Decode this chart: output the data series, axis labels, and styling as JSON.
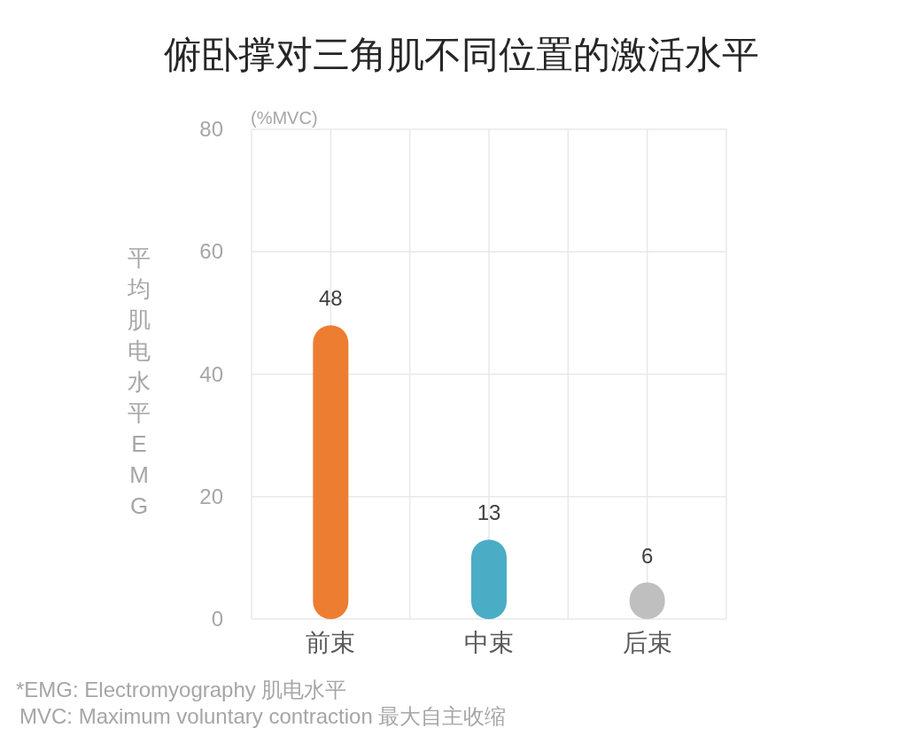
{
  "chart_data": {
    "type": "bar",
    "title": "俯卧撑对三角肌不同位置的激活水平",
    "ylabel": "平均肌电水平EMG",
    "categories": [
      "前束",
      "中束",
      "后束"
    ],
    "values": [
      48,
      13,
      6
    ],
    "colors": [
      "#ed7d31",
      "#4bacc6",
      "#bfbfbf"
    ],
    "ylim": [
      0,
      80
    ],
    "yticks": [
      0,
      20,
      40,
      60,
      80
    ],
    "grid": true,
    "data_labels": true,
    "annotations": [
      "(%MVC)",
      "*EMG: Electromyography  肌电水平",
      "MVC: Maximum voluntary contraction  最大自主收缩"
    ]
  }
}
